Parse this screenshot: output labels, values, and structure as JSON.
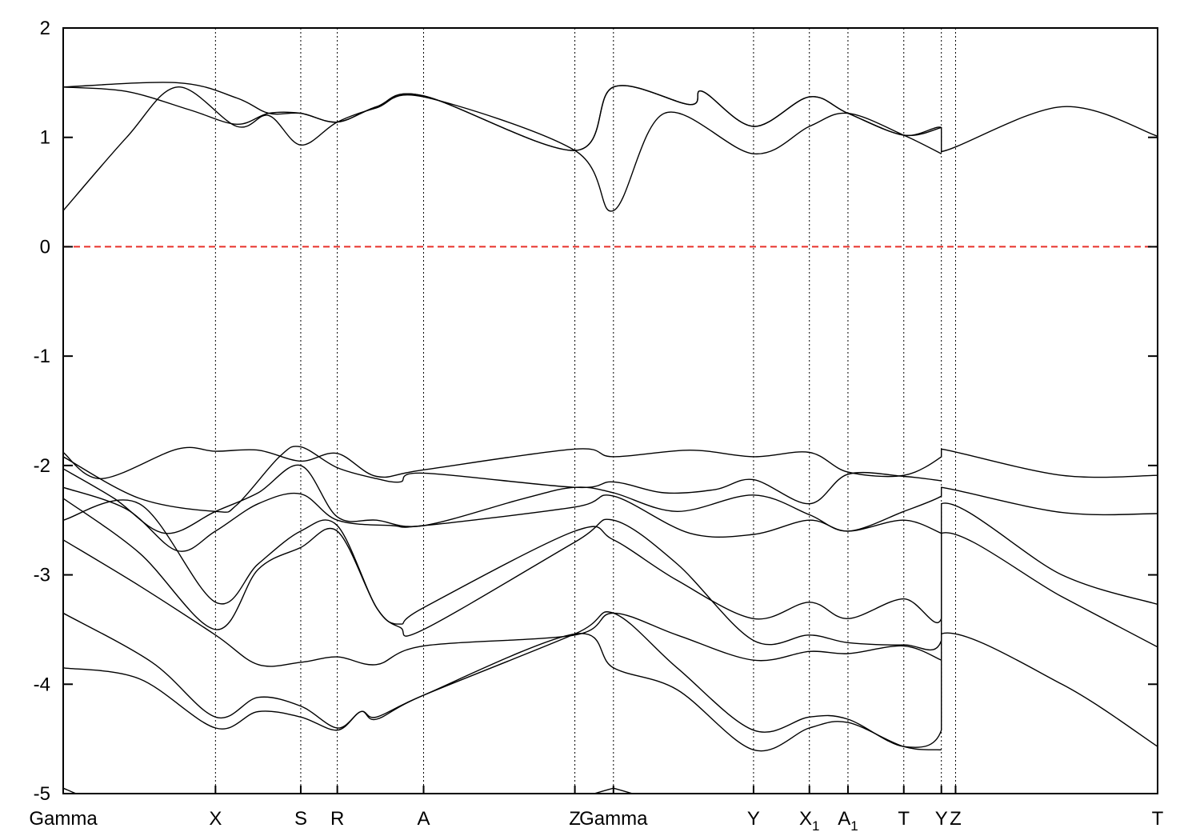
{
  "chart_data": {
    "type": "line",
    "title": "",
    "xlabel": "",
    "ylabel": "",
    "ylim": [
      -5,
      2
    ],
    "yticks": [
      "-5",
      "-4",
      "-3",
      "-2",
      "-1",
      "0",
      "1",
      "2"
    ],
    "high_symmetry_points": [
      {
        "label": "Gamma",
        "sub": ""
      },
      {
        "label": "X",
        "sub": ""
      },
      {
        "label": "S",
        "sub": ""
      },
      {
        "label": "R",
        "sub": ""
      },
      {
        "label": "A",
        "sub": ""
      },
      {
        "label": "Z",
        "sub": ""
      },
      {
        "label": "Gamma",
        "sub": ""
      },
      {
        "label": "Y",
        "sub": ""
      },
      {
        "label": "X",
        "sub": "1"
      },
      {
        "label": "A",
        "sub": "1"
      },
      {
        "label": "T",
        "sub": ""
      },
      {
        "label": "Y",
        "sub": ""
      },
      {
        "label": "Z",
        "sub": ""
      },
      {
        "label": "T",
        "sub": ""
      }
    ],
    "reference_line": {
      "y": 0,
      "color": "#e8302a",
      "style": "dashed"
    },
    "series": [
      {
        "values": [
          [
            0,
            1.46
          ],
          [
            0.5,
            1.42
          ],
          [
            1,
            1.25
          ],
          [
            1.4,
            1.12
          ],
          [
            1.7,
            1.22
          ],
          [
            2,
            1.22
          ],
          [
            2.3,
            1.14
          ],
          [
            2.8,
            1.28
          ],
          [
            3.4,
            1.38
          ],
          [
            4.0,
            0.88
          ],
          [
            4.3,
            1.46
          ],
          [
            4.9,
            1.3
          ],
          [
            5.0,
            1.42
          ],
          [
            5.4,
            1.1
          ],
          [
            5.8,
            1.37
          ],
          [
            6.1,
            1.22
          ],
          [
            6.5,
            1.02
          ],
          [
            6.8,
            1.09
          ],
          [
            6.8,
            0.87
          ],
          [
            7.5,
            1.28
          ],
          [
            8.13,
            1.01
          ]
        ]
      },
      {
        "values": [
          [
            0,
            1.46
          ],
          [
            0.9,
            1.5
          ],
          [
            1.4,
            1.36
          ],
          [
            1.7,
            1.22
          ],
          [
            2,
            1.22
          ],
          [
            2.3,
            1.14
          ],
          [
            2.8,
            1.28
          ],
          [
            3.4,
            1.38
          ],
          [
            4.0,
            0.88
          ],
          [
            4.3,
            1.46
          ],
          [
            4.9,
            1.3
          ],
          [
            5.0,
            1.42
          ],
          [
            5.4,
            1.1
          ],
          [
            5.8,
            1.37
          ],
          [
            6.1,
            1.22
          ],
          [
            6.5,
            1.02
          ],
          [
            6.8,
            1.09
          ]
        ]
      },
      {
        "values": [
          [
            0,
            0.33
          ],
          [
            0.5,
            1.0
          ],
          [
            0.9,
            1.46
          ],
          [
            1.4,
            1.1
          ],
          [
            1.7,
            1.2
          ],
          [
            2.0,
            0.93
          ],
          [
            2.3,
            1.14
          ],
          [
            2.8,
            1.27
          ],
          [
            3.4,
            1.37
          ],
          [
            4.0,
            0.88
          ],
          [
            4.3,
            0.33
          ],
          [
            4.7,
            1.22
          ],
          [
            5.4,
            0.85
          ],
          [
            5.8,
            1.1
          ],
          [
            6.1,
            1.22
          ],
          [
            6.5,
            1.02
          ],
          [
            6.8,
            0.85
          ]
        ]
      },
      {
        "values": [
          [
            0,
            -1.88
          ],
          [
            0.3,
            -2.12
          ],
          [
            0.9,
            -1.85
          ],
          [
            1.2,
            -1.87
          ],
          [
            1.6,
            -1.86
          ],
          [
            2.0,
            -1.96
          ],
          [
            2.3,
            -1.89
          ],
          [
            2.8,
            -2.1
          ],
          [
            3.4,
            -2.04
          ],
          [
            4.0,
            -1.85
          ],
          [
            4.3,
            -1.92
          ],
          [
            4.9,
            -1.86
          ],
          [
            5.4,
            -1.92
          ],
          [
            5.8,
            -1.88
          ],
          [
            6.1,
            -2.06
          ],
          [
            6.5,
            -2.09
          ],
          [
            6.8,
            -1.92
          ],
          [
            6.8,
            -1.85
          ],
          [
            7.5,
            -2.09
          ],
          [
            8.13,
            -2.09
          ]
        ]
      },
      {
        "values": [
          [
            0,
            -1.92
          ],
          [
            0.6,
            -2.3
          ],
          [
            1.2,
            -2.42
          ],
          [
            1.4,
            -2.36
          ],
          [
            1.8,
            -1.92
          ],
          [
            2.0,
            -1.83
          ],
          [
            2.3,
            -2.02
          ],
          [
            2.8,
            -2.12
          ],
          [
            3.1,
            -2.15
          ],
          [
            3.4,
            -2.07
          ],
          [
            4.0,
            -2.2
          ],
          [
            4.3,
            -2.15
          ],
          [
            4.7,
            -2.25
          ],
          [
            5.1,
            -2.22
          ],
          [
            5.4,
            -2.13
          ],
          [
            5.8,
            -2.35
          ],
          [
            6.1,
            -2.08
          ],
          [
            6.5,
            -2.1
          ],
          [
            6.8,
            -2.14
          ]
        ]
      },
      {
        "values": [
          [
            0,
            -2.03
          ],
          [
            0.4,
            -2.3
          ],
          [
            0.8,
            -2.62
          ],
          [
            1.2,
            -2.42
          ],
          [
            1.6,
            -2.25
          ],
          [
            2.0,
            -2.0
          ],
          [
            2.3,
            -2.47
          ],
          [
            2.8,
            -2.5
          ],
          [
            3.4,
            -2.55
          ],
          [
            3.8,
            -2.3
          ],
          [
            4.0,
            -2.2
          ],
          [
            4.3,
            -2.25
          ],
          [
            4.8,
            -2.42
          ],
          [
            5.4,
            -2.27
          ],
          [
            5.8,
            -2.45
          ],
          [
            6.1,
            -2.6
          ],
          [
            6.5,
            -2.42
          ],
          [
            6.8,
            -2.28
          ],
          [
            6.8,
            -2.2
          ],
          [
            7.5,
            -2.43
          ],
          [
            8.13,
            -2.44
          ]
        ]
      },
      {
        "values": [
          [
            0,
            -2.2
          ],
          [
            0.5,
            -2.4
          ],
          [
            0.9,
            -2.78
          ],
          [
            1.2,
            -2.6
          ],
          [
            1.6,
            -2.35
          ],
          [
            2.0,
            -2.26
          ],
          [
            2.3,
            -2.5
          ],
          [
            3.0,
            -2.55
          ],
          [
            3.4,
            -2.55
          ],
          [
            4.0,
            -2.38
          ],
          [
            4.3,
            -2.28
          ],
          [
            4.9,
            -2.62
          ],
          [
            5.4,
            -2.63
          ],
          [
            5.8,
            -2.5
          ],
          [
            6.1,
            -2.6
          ],
          [
            6.5,
            -2.5
          ],
          [
            6.8,
            -2.62
          ]
        ]
      },
      {
        "values": [
          [
            0,
            -2.5
          ],
          [
            0.6,
            -2.35
          ],
          [
            1.2,
            -3.25
          ],
          [
            1.6,
            -2.9
          ],
          [
            2.0,
            -2.6
          ],
          [
            2.3,
            -2.55
          ],
          [
            2.8,
            -3.3
          ],
          [
            3.1,
            -3.45
          ],
          [
            3.4,
            -3.3
          ],
          [
            4.0,
            -2.6
          ],
          [
            4.3,
            -2.68
          ],
          [
            4.8,
            -3.05
          ],
          [
            5.4,
            -3.4
          ],
          [
            5.8,
            -3.25
          ],
          [
            6.1,
            -3.4
          ],
          [
            6.5,
            -3.22
          ],
          [
            6.8,
            -3.4
          ],
          [
            6.8,
            -2.35
          ],
          [
            7.5,
            -3.0
          ],
          [
            8.13,
            -3.27
          ]
        ]
      },
      {
        "values": [
          [
            0,
            -2.3
          ],
          [
            0.6,
            -2.8
          ],
          [
            1.2,
            -3.5
          ],
          [
            1.6,
            -2.95
          ],
          [
            2.0,
            -2.75
          ],
          [
            2.3,
            -2.6
          ],
          [
            2.8,
            -3.3
          ],
          [
            3.1,
            -3.48
          ],
          [
            3.4,
            -3.5
          ],
          [
            4.0,
            -2.7
          ],
          [
            4.3,
            -2.5
          ],
          [
            4.8,
            -2.9
          ],
          [
            5.4,
            -3.6
          ],
          [
            5.8,
            -3.55
          ],
          [
            6.1,
            -3.62
          ],
          [
            6.5,
            -3.64
          ],
          [
            6.8,
            -3.6
          ],
          [
            6.8,
            -2.62
          ],
          [
            7.5,
            -3.2
          ],
          [
            8.13,
            -3.66
          ]
        ]
      },
      {
        "values": [
          [
            0,
            -2.68
          ],
          [
            0.6,
            -3.1
          ],
          [
            1.2,
            -3.55
          ],
          [
            1.6,
            -3.82
          ],
          [
            2.0,
            -3.8
          ],
          [
            2.3,
            -3.75
          ],
          [
            2.8,
            -3.82
          ],
          [
            3.4,
            -3.65
          ],
          [
            4.0,
            -3.55
          ],
          [
            4.3,
            -3.35
          ],
          [
            4.8,
            -3.55
          ],
          [
            5.4,
            -3.78
          ],
          [
            5.8,
            -3.7
          ],
          [
            6.1,
            -3.72
          ],
          [
            6.5,
            -3.65
          ],
          [
            6.8,
            -3.78
          ]
        ]
      },
      {
        "values": [
          [
            0,
            -3.35
          ],
          [
            0.7,
            -3.8
          ],
          [
            1.2,
            -4.3
          ],
          [
            1.6,
            -4.12
          ],
          [
            2.0,
            -4.2
          ],
          [
            2.3,
            -4.4
          ],
          [
            2.6,
            -4.25
          ],
          [
            2.8,
            -4.3
          ],
          [
            3.4,
            -4.1
          ],
          [
            4.0,
            -3.54
          ],
          [
            4.3,
            -3.35
          ],
          [
            4.8,
            -3.85
          ],
          [
            5.4,
            -4.42
          ],
          [
            5.8,
            -4.3
          ],
          [
            6.1,
            -4.32
          ],
          [
            6.5,
            -4.57
          ],
          [
            6.8,
            -4.42
          ],
          [
            6.8,
            -3.54
          ],
          [
            7.5,
            -4.0
          ],
          [
            8.13,
            -4.57
          ]
        ]
      },
      {
        "values": [
          [
            0,
            -3.85
          ],
          [
            0.6,
            -3.95
          ],
          [
            1.2,
            -4.4
          ],
          [
            1.6,
            -4.25
          ],
          [
            2.0,
            -4.3
          ],
          [
            2.3,
            -4.42
          ],
          [
            2.6,
            -4.25
          ],
          [
            2.8,
            -4.32
          ],
          [
            3.4,
            -4.1
          ],
          [
            4.0,
            -3.54
          ],
          [
            4.3,
            -3.85
          ],
          [
            4.8,
            -4.05
          ],
          [
            5.4,
            -4.6
          ],
          [
            5.8,
            -4.4
          ],
          [
            6.1,
            -4.35
          ],
          [
            6.5,
            -4.57
          ],
          [
            6.8,
            -4.6
          ]
        ]
      },
      {
        "values": [
          [
            0,
            -4.95
          ],
          [
            0.1,
            -5.0
          ]
        ]
      },
      {
        "values": [
          [
            4.3,
            -4.95
          ],
          [
            4.15,
            -5.0
          ]
        ]
      },
      {
        "values": [
          [
            4.3,
            -4.95
          ],
          [
            4.45,
            -5.0
          ]
        ]
      }
    ]
  }
}
